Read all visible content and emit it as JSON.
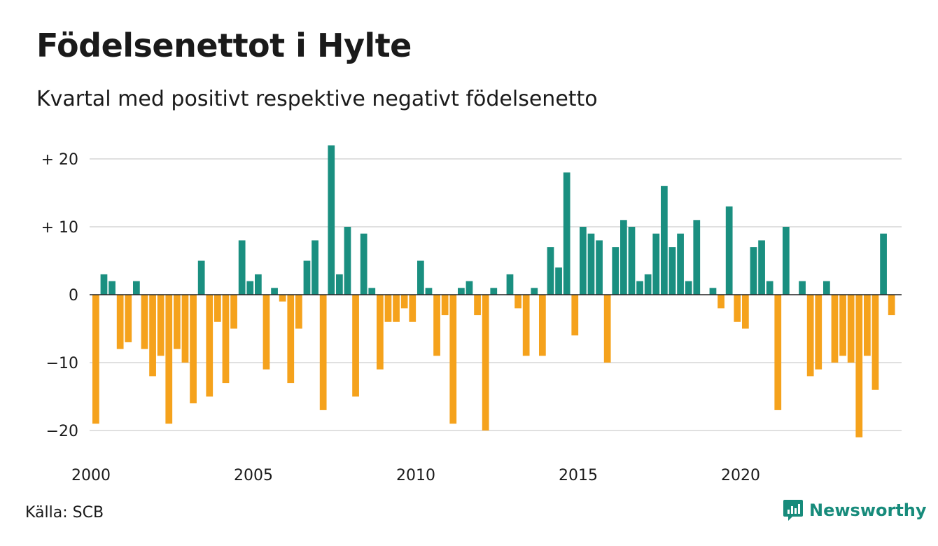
{
  "header": {
    "title": "Födelsenettot i Hylte",
    "subtitle": "Kvartal med positivt respektive negativt födelsenetto"
  },
  "footer": {
    "source": "Källa: SCB",
    "brand": "Newsworthy"
  },
  "colors": {
    "positive": "#1a8f80",
    "negative": "#f5a21c",
    "grid": "#e0e0e0",
    "zero_line": "#222222",
    "brand": "#178b7b"
  },
  "chart_data": {
    "type": "bar",
    "x_start": 2000,
    "x_step": 0.25,
    "values": [
      -19,
      3,
      2,
      -8,
      -7,
      2,
      -8,
      -12,
      -9,
      -19,
      -8,
      -10,
      -16,
      5,
      -15,
      -4,
      -13,
      -5,
      8,
      2,
      3,
      -11,
      1,
      -1,
      -13,
      -5,
      5,
      8,
      -17,
      22,
      3,
      10,
      -15,
      9,
      1,
      -11,
      -4,
      -4,
      -2,
      -4,
      5,
      1,
      -9,
      -3,
      -19,
      1,
      2,
      -3,
      -20,
      1,
      0,
      3,
      -2,
      -9,
      1,
      -9,
      7,
      4,
      18,
      -6,
      10,
      9,
      8,
      -10,
      7,
      11,
      10,
      2,
      3,
      9,
      16,
      7,
      9,
      2,
      11,
      0,
      1,
      -2,
      13,
      -4,
      -5,
      7,
      8,
      2,
      -17,
      10,
      0,
      2,
      -12,
      -11,
      2,
      -10,
      -9,
      -10,
      -21,
      -9,
      -14,
      9,
      -3
    ],
    "xticks": [
      "2000",
      "2005",
      "2010",
      "2015",
      "2020"
    ],
    "xtick_values": [
      2000,
      2005,
      2010,
      2015,
      2020
    ],
    "yticks": [
      "+ 20",
      "+ 10",
      "0",
      "−10",
      "−20"
    ],
    "ytick_values": [
      20,
      10,
      0,
      -10,
      -20
    ],
    "ylim": [
      -23,
      23
    ],
    "grid": true
  }
}
